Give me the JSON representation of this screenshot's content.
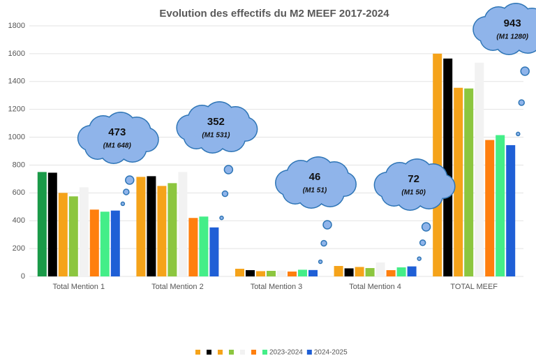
{
  "chart_data": {
    "type": "bar",
    "title": "Evolution des effectifs du M2 MEEF  2017-2024",
    "categories": [
      "Total Mention 1",
      "Total Mention 2",
      "Total Mention 3",
      "Total Mention 4",
      "TOTAL MEEF"
    ],
    "series": [
      {
        "color": "#f5a31a",
        "colors": [
          "#1a9a48",
          "#f5a31a",
          "#f5a31a",
          "#f5a31a",
          "#f5a31a"
        ],
        "values": [
          750,
          715,
          55,
          75,
          1600
        ]
      },
      {
        "color": "#000000",
        "values": [
          745,
          720,
          45,
          58,
          1565
        ]
      },
      {
        "color": "#f5a31a",
        "values": [
          600,
          650,
          38,
          68,
          1355
        ]
      },
      {
        "color": "#8cc63f",
        "values": [
          575,
          670,
          40,
          60,
          1350
        ]
      },
      {
        "color": "#f2f2f2",
        "values": [
          640,
          750,
          42,
          100,
          1535
        ]
      },
      {
        "color": "#ff7f0e",
        "values": [
          480,
          420,
          35,
          45,
          980
        ]
      },
      {
        "name": "2023-2024",
        "color": "#44ee88",
        "values": [
          465,
          430,
          48,
          65,
          1015
        ]
      },
      {
        "name": "2024-2025",
        "color": "#1f5fd6",
        "values": [
          473,
          352,
          46,
          72,
          943
        ]
      }
    ],
    "annotations": [
      {
        "text": "473",
        "note": "(M1 648)"
      },
      {
        "text": "352",
        "note": "(M1 531)"
      },
      {
        "text": "46",
        "note": "(M1 51)"
      },
      {
        "text": "72",
        "note": "(M1 50)"
      },
      {
        "text": "943",
        "note": "(M1 1280)"
      }
    ],
    "ylim": [
      0,
      1800
    ],
    "yticks": [
      0,
      200,
      400,
      600,
      800,
      1000,
      1200,
      1400,
      1600,
      1800
    ],
    "grid": true
  }
}
